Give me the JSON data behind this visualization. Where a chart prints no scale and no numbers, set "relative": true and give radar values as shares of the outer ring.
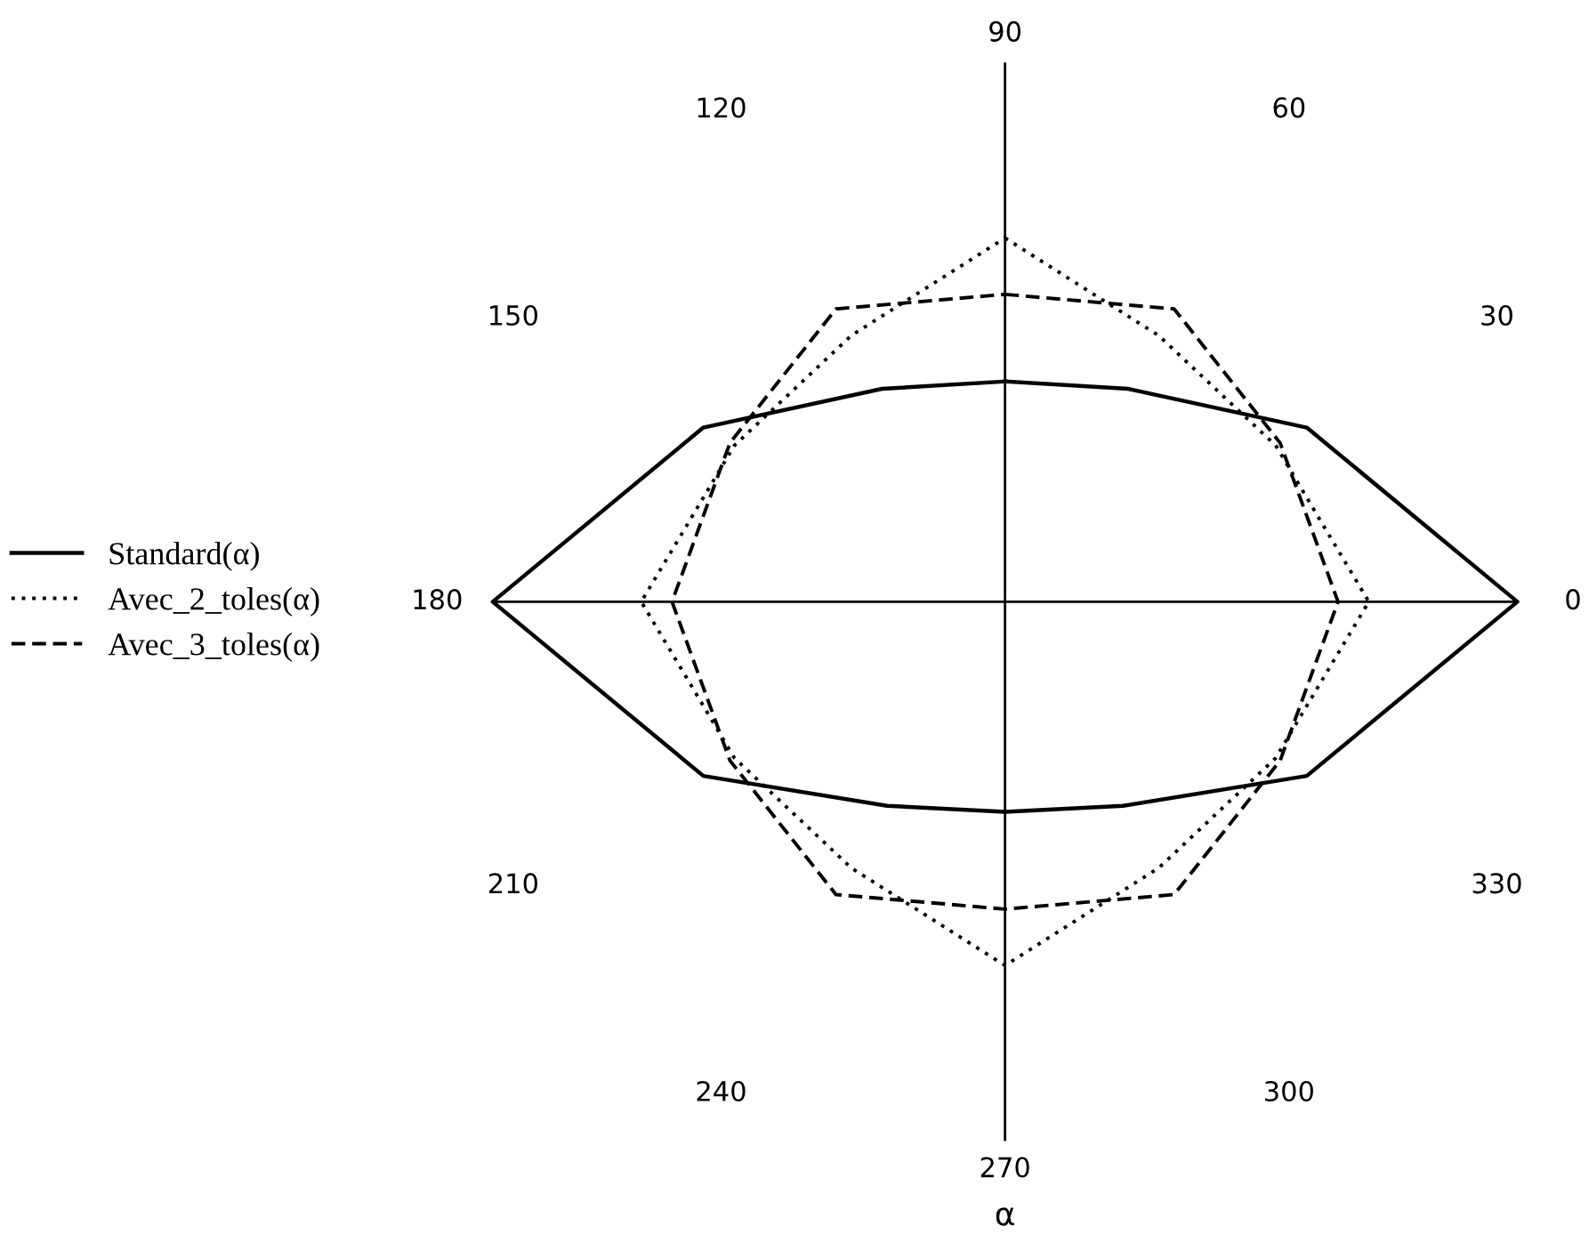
{
  "chart_data": {
    "type": "radar",
    "relative": true,
    "xlabel": "α",
    "grid": false,
    "legend": "left",
    "marker": "none",
    "categories": [
      "90",
      "60",
      "30",
      "0",
      "330",
      "300",
      "270",
      "240",
      "210",
      "180",
      "150",
      "120"
    ],
    "series": [
      {
        "name": "Standard(α)",
        "color": "#000000",
        "line_style": "solid",
        "values": [
          0.43,
          0.48,
          0.68,
          1.0,
          0.68,
          0.46,
          0.41,
          0.46,
          0.68,
          1.0,
          0.68,
          0.48
        ]
      },
      {
        "name": "Avec_2_toles(α)",
        "color": "#000000",
        "line_style": "dotted",
        "values": [
          0.71,
          0.6,
          0.61,
          0.71,
          0.61,
          0.6,
          0.71,
          0.6,
          0.61,
          0.71,
          0.61,
          0.6
        ]
      },
      {
        "name": "Avec_3_toles(α)",
        "color": "#000000",
        "line_style": "dashed",
        "values": [
          0.6,
          0.66,
          0.62,
          0.65,
          0.62,
          0.66,
          0.6,
          0.66,
          0.62,
          0.65,
          0.62,
          0.66
        ]
      }
    ]
  }
}
